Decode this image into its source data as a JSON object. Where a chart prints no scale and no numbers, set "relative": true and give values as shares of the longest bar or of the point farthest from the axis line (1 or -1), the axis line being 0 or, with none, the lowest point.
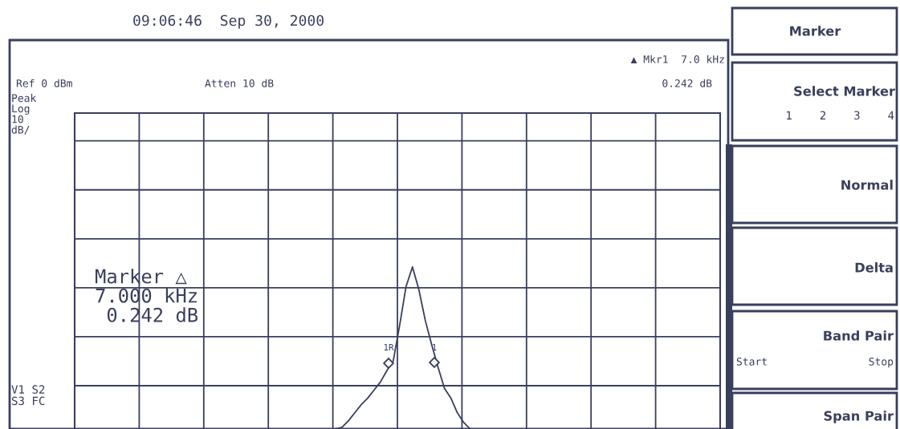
{
  "chart_data": {
    "type": "line",
    "relative": true,
    "grid": true,
    "color": "#3a3f5c",
    "title": "09:06:46  Sep 30, 2000",
    "categories": [
      null,
      null,
      null,
      null,
      null,
      null,
      null,
      null,
      null,
      null,
      null,
      null,
      null,
      null,
      null,
      null,
      null,
      null,
      null,
      null,
      null,
      null
    ],
    "series": [
      {
        "color": "#3a3f5c",
        "values": [
          0,
          0.01,
          0.05,
          0.1,
          0.15,
          0.19,
          0.24,
          0.29,
          0.36,
          0.42,
          0.64,
          0.88,
          1.0,
          0.86,
          0.67,
          0.52,
          0.38,
          0.25,
          0.19,
          0.1,
          0.04,
          0
        ]
      }
    ],
    "annotations": [
      "Ref 0 dBm",
      "Atten 10 dB",
      "▲ Mkr1  7.0 kHz",
      "0.242 dB",
      "Peak\nLog\n10\ndB/",
      "Marker △\n7.000 kHz\n 0.242 dB",
      "V1 S2\nS3 FC",
      "Marker",
      "Select Marker",
      "1    2    3    4",
      "Normal",
      "Delta",
      "Band Pair",
      "Start",
      "Stop",
      "Span Pair",
      "1R",
      "1"
    ]
  }
}
